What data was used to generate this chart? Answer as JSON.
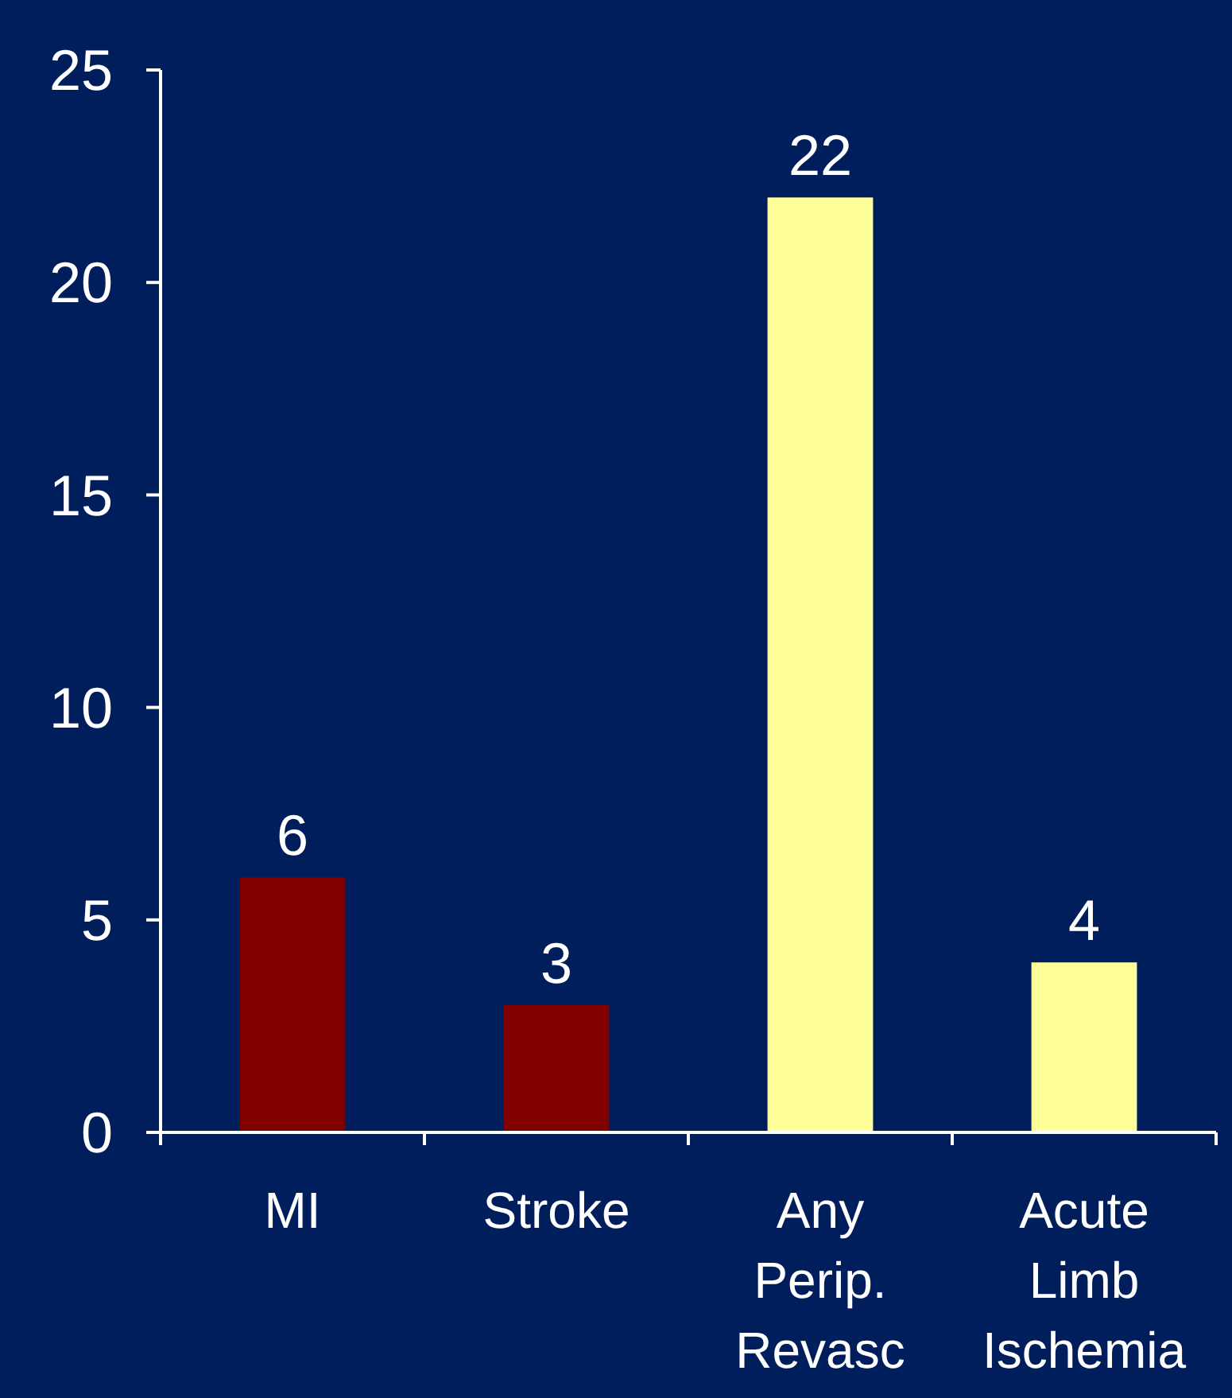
{
  "chart_data": {
    "type": "bar",
    "categories": [
      "MI",
      "Stroke",
      "Any Perip. Revasc",
      "Acute Limb Ischemia"
    ],
    "values": [
      6,
      3,
      22,
      4
    ],
    "colors": [
      "#800000",
      "#800000",
      "#ffff99",
      "#ffff99"
    ],
    "ylim": [
      0,
      25
    ],
    "yticks": [
      0,
      5,
      10,
      15,
      20,
      25
    ],
    "data_labels": true,
    "grid": false
  }
}
